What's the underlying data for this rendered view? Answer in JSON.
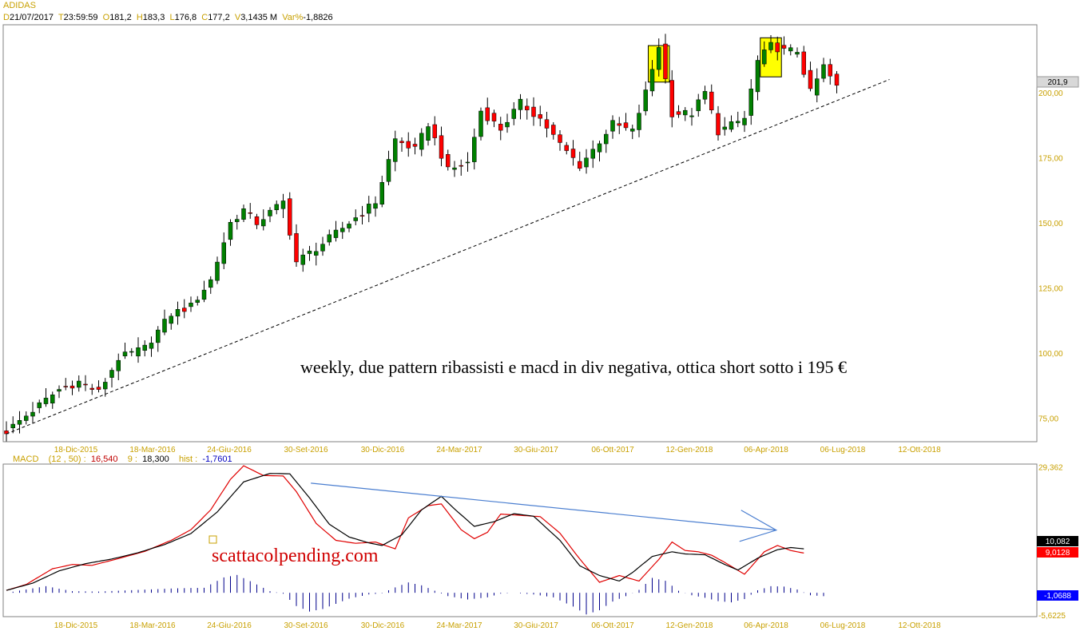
{
  "header": {
    "symbol": "ADIDAS",
    "d_label": "D",
    "date": "21/07/2017",
    "t_label": "T",
    "time": "23:59:59",
    "o_label": "O",
    "open": "181,2",
    "h_label": "H",
    "high": "183,3",
    "l_label": "L",
    "low": "176,8",
    "c_label": "C",
    "close": "177,2",
    "v_label": "V",
    "volume": "3,1435 M",
    "var_label": "Var%",
    "var": "-1,8826"
  },
  "macd_header": {
    "name": "MACD",
    "params": "(12 , 50) :",
    "macd_value": "16,540",
    "signal_label": "9 :",
    "signal_value": "18,300",
    "hist_label": "hist :",
    "hist_value": "-1,7601"
  },
  "annotation": "weekly, due pattern ribassisti e macd in div negativa, ottica short sotto i 195 €",
  "watermark": "scattacolpending.com",
  "colors": {
    "up": "#008000",
    "down": "#ff0000",
    "highlight": "#ffff00",
    "macd_line": "#e00000",
    "signal_line": "#000000",
    "hist": "#00008b",
    "trend_arrow": "#4a7ed0",
    "axis_text": "#c8a000"
  },
  "chart_data": [
    {
      "type": "candlestick",
      "title": "ADIDAS",
      "frequency": "weekly",
      "y_ticks": [
        "75,00",
        "100,00",
        "125,00",
        "150,00",
        "175,00",
        "200,00"
      ],
      "y_tick_values": [
        75,
        100,
        125,
        150,
        175,
        200
      ],
      "ylim": [
        66,
        226
      ],
      "last_price_label": "201,9",
      "x_ticks": [
        "18-Dic-2015",
        "18-Mar-2016",
        "24-Giu-2016",
        "30-Set-2016",
        "30-Dic-2016",
        "24-Mar-2017",
        "30-Giu-2017",
        "06-Ott-2017",
        "12-Gen-2018",
        "06-Apr-2018",
        "06-Lug-2018",
        "12-Ott-2018"
      ],
      "price_anchors": [
        [
          0,
          70
        ],
        [
          4,
          78
        ],
        [
          8,
          86
        ],
        [
          11,
          89
        ],
        [
          14,
          85
        ],
        [
          17,
          98
        ],
        [
          21,
          102
        ],
        [
          25,
          115
        ],
        [
          28,
          118
        ],
        [
          31,
          128
        ],
        [
          34,
          150
        ],
        [
          36,
          155
        ],
        [
          38,
          150
        ],
        [
          42,
          158
        ],
        [
          44,
          135
        ],
        [
          48,
          142
        ],
        [
          52,
          150
        ],
        [
          56,
          158
        ],
        [
          59,
          182
        ],
        [
          62,
          178
        ],
        [
          64,
          188
        ],
        [
          67,
          170
        ],
        [
          70,
          173
        ],
        [
          72,
          193
        ],
        [
          75,
          186
        ],
        [
          78,
          196
        ],
        [
          81,
          190
        ],
        [
          84,
          180
        ],
        [
          87,
          172
        ],
        [
          89,
          178
        ],
        [
          92,
          188
        ],
        [
          95,
          185
        ],
        [
          97,
          200
        ],
        [
          99,
          218
        ],
        [
          101,
          192
        ],
        [
          104,
          192
        ],
        [
          106,
          200
        ],
        [
          108,
          185
        ],
        [
          112,
          190
        ],
        [
          114,
          212
        ],
        [
          116,
          218
        ],
        [
          118,
          216
        ],
        [
          120,
          216
        ],
        [
          122,
          200
        ],
        [
          124,
          210
        ],
        [
          126,
          202
        ]
      ],
      "trendline": {
        "style": "dashed",
        "from": [
          0,
          69
        ],
        "to": [
          134,
          205
        ]
      },
      "highlight_boxes": [
        {
          "from_week": 98,
          "to_week": 100,
          "low": 204,
          "high": 218
        },
        {
          "from_week": 115,
          "to_week": 117,
          "low": 206,
          "high": 221
        }
      ]
    },
    {
      "type": "line",
      "title": "MACD",
      "y_ticks": [
        "29,362",
        "-5,6225"
      ],
      "y_tick_values": [
        29.362,
        -5.6225
      ],
      "ylim": [
        -6.0,
        30.0
      ],
      "value_labels": [
        "10,082",
        "9,0128",
        "-1,0688"
      ],
      "series": [
        {
          "name": "MACD",
          "anchors": [
            [
              0,
              0.2
            ],
            [
              3,
              1.6
            ],
            [
              7,
              5.3
            ],
            [
              10,
              6.3
            ],
            [
              13,
              6.1
            ],
            [
              17,
              7.7
            ],
            [
              21,
              9.4
            ],
            [
              25,
              12
            ],
            [
              28,
              14.5
            ],
            [
              31,
              19.2
            ],
            [
              34,
              26.4
            ],
            [
              36,
              29.6
            ],
            [
              39,
              27.3
            ],
            [
              42,
              27.2
            ],
            [
              44,
              23.5
            ],
            [
              47,
              16
            ],
            [
              50,
              12
            ],
            [
              53,
              11.3
            ],
            [
              56,
              11.6
            ],
            [
              59,
              10
            ],
            [
              61,
              17.3
            ],
            [
              64,
              20.2
            ],
            [
              66,
              20.6
            ],
            [
              69,
              14.5
            ],
            [
              71,
              12.4
            ],
            [
              73,
              13.9
            ],
            [
              75,
              18.2
            ],
            [
              78,
              17.9
            ],
            [
              81,
              17.6
            ],
            [
              84,
              13.7
            ],
            [
              87,
              7.6
            ],
            [
              90,
              2.1
            ],
            [
              93,
              3.7
            ],
            [
              96,
              2.4
            ],
            [
              99,
              7.5
            ],
            [
              101,
              11.6
            ],
            [
              103,
              9.6
            ],
            [
              105,
              9.3
            ],
            [
              107,
              8.5
            ],
            [
              109,
              6.8
            ],
            [
              112,
              4
            ],
            [
              115,
              9.3
            ],
            [
              117,
              10.8
            ],
            [
              119,
              9.6
            ],
            [
              121,
              9
            ]
          ]
        },
        {
          "name": "signal",
          "anchors": [
            [
              0,
              0.2
            ],
            [
              4,
              1.9
            ],
            [
              8,
              4.8
            ],
            [
              12,
              6.5
            ],
            [
              16,
              7.6
            ],
            [
              20,
              9.1
            ],
            [
              24,
              11
            ],
            [
              28,
              13.6
            ],
            [
              32,
              18.7
            ],
            [
              36,
              25.8
            ],
            [
              40,
              27.8
            ],
            [
              43,
              27.7
            ],
            [
              46,
              22
            ],
            [
              49,
              15.8
            ],
            [
              52,
              12.8
            ],
            [
              55,
              11.4
            ],
            [
              57,
              10.8
            ],
            [
              60,
              13.3
            ],
            [
              63,
              19.2
            ],
            [
              66,
              22.4
            ],
            [
              68,
              19.4
            ],
            [
              71,
              15.3
            ],
            [
              74,
              16.4
            ],
            [
              77,
              18.3
            ],
            [
              80,
              17.7
            ],
            [
              84,
              12
            ],
            [
              87,
              6
            ],
            [
              90,
              3.7
            ],
            [
              93,
              2.4
            ],
            [
              95,
              4.4
            ],
            [
              98,
              8.2
            ],
            [
              101,
              9.3
            ],
            [
              103,
              8.8
            ],
            [
              106,
              8.6
            ],
            [
              109,
              6.3
            ],
            [
              111,
              5
            ],
            [
              114,
              7.8
            ],
            [
              117,
              9.8
            ],
            [
              119,
              10.3
            ],
            [
              121,
              10
            ]
          ]
        },
        {
          "name": "hist",
          "anchors": [
            [
              0,
              0
            ],
            [
              6,
              1.6
            ],
            [
              10,
              0.4
            ],
            [
              14,
              0.3
            ],
            [
              20,
              0.7
            ],
            [
              26,
              1.1
            ],
            [
              30,
              1.2
            ],
            [
              33,
              3.7
            ],
            [
              35,
              4.3
            ],
            [
              37,
              2.8
            ],
            [
              40,
              0.4
            ],
            [
              42,
              -0.2
            ],
            [
              44,
              -3.2
            ],
            [
              46,
              -4.5
            ],
            [
              48,
              -3.9
            ],
            [
              52,
              -1.4
            ],
            [
              55,
              -0.4
            ],
            [
              57,
              -0.1
            ],
            [
              59,
              1.3
            ],
            [
              61,
              2.5
            ],
            [
              63,
              1.8
            ],
            [
              65,
              0.5
            ],
            [
              67,
              -0.8
            ],
            [
              70,
              -1.6
            ],
            [
              73,
              -1.1
            ],
            [
              75,
              -0.2
            ],
            [
              77,
              0
            ],
            [
              80,
              -0.4
            ],
            [
              83,
              -1.1
            ],
            [
              86,
              -3.3
            ],
            [
              88,
              -5.2
            ],
            [
              90,
              -4.2
            ],
            [
              92,
              -2.1
            ],
            [
              94,
              -0.8
            ],
            [
              96,
              0.7
            ],
            [
              98,
              3.6
            ],
            [
              100,
              2.9
            ],
            [
              102,
              0.5
            ],
            [
              104,
              -0.6
            ],
            [
              106,
              -1.2
            ],
            [
              108,
              -2
            ],
            [
              110,
              -2.3
            ],
            [
              112,
              -1.5
            ],
            [
              114,
              0.6
            ],
            [
              116,
              1.6
            ],
            [
              118,
              1.5
            ],
            [
              120,
              0.8
            ],
            [
              122,
              -0.6
            ],
            [
              124,
              -0.8
            ]
          ]
        }
      ],
      "divergence_arrow": {
        "from": [
          70,
          25.5
        ],
        "to": [
          177,
          14.4
        ]
      }
    }
  ]
}
